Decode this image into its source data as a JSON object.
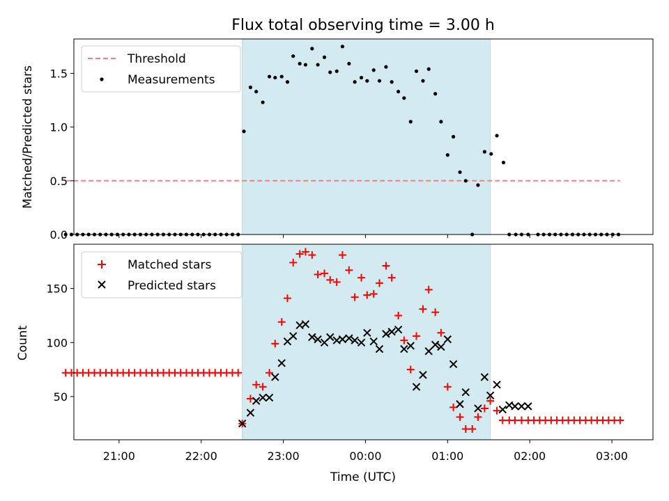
{
  "chart_data": [
    {
      "type": "scatter",
      "title": "Flux total observing time = 3.00 h",
      "xlabel": "",
      "ylabel": "Matched/Predicted stars",
      "ylim": [
        0,
        1.82
      ],
      "yticks": [
        "0.0",
        "0.5",
        "1.0",
        "1.5"
      ],
      "xlim": [
        20.45,
        27.5
      ],
      "shaded_interval": [
        22.5,
        25.52
      ],
      "shade_color": "#d3eaf0",
      "legend_position": "top-left",
      "series": [
        {
          "name": "Threshold",
          "style": "dashed-line",
          "color": "#f08080",
          "x": [
            20.35,
            27.1
          ],
          "y": [
            0.5,
            0.5
          ]
        },
        {
          "name": "Measurements",
          "style": "dots",
          "color": "#000000",
          "x": [
            20.35,
            20.42,
            20.49,
            20.56,
            20.63,
            20.7,
            20.77,
            20.84,
            20.91,
            20.98,
            21.05,
            21.12,
            21.19,
            21.26,
            21.33,
            21.4,
            21.47,
            21.54,
            21.61,
            21.68,
            21.75,
            21.82,
            21.89,
            21.96,
            22.03,
            22.1,
            22.17,
            22.24,
            22.31,
            22.38,
            22.45,
            22.52,
            22.6,
            22.67,
            22.75,
            22.83,
            22.9,
            22.98,
            23.05,
            23.12,
            23.2,
            23.27,
            23.35,
            23.42,
            23.5,
            23.57,
            23.65,
            23.72,
            23.8,
            23.87,
            23.95,
            24.02,
            24.1,
            24.17,
            24.25,
            24.32,
            24.4,
            24.47,
            24.55,
            24.62,
            24.7,
            24.77,
            24.85,
            24.92,
            25.0,
            25.07,
            25.15,
            25.22,
            25.3,
            25.37,
            25.45,
            25.53,
            25.6,
            25.68,
            25.75,
            25.83,
            25.9,
            25.98,
            26.1,
            26.17,
            26.24,
            26.31,
            26.38,
            26.45,
            26.52,
            26.59,
            26.66,
            26.73,
            26.8,
            26.87,
            26.94,
            27.01,
            27.08
          ],
          "y": [
            0,
            0,
            0,
            0,
            0,
            0,
            0,
            0,
            0,
            0,
            0,
            0,
            0,
            0,
            0,
            0,
            0,
            0,
            0,
            0,
            0,
            0,
            0,
            0,
            0,
            0,
            0,
            0,
            0,
            0,
            0,
            0.96,
            1.37,
            1.33,
            1.23,
            1.47,
            1.46,
            1.47,
            1.42,
            1.66,
            1.59,
            1.58,
            1.73,
            1.58,
            1.65,
            1.51,
            1.52,
            1.75,
            1.59,
            1.42,
            1.46,
            1.43,
            1.53,
            1.43,
            1.56,
            1.42,
            1.33,
            1.27,
            1.05,
            1.52,
            1.43,
            1.54,
            1.31,
            1.05,
            0.74,
            0.91,
            0.58,
            0.5,
            0,
            0.46,
            0.77,
            0.75,
            0.92,
            0.67,
            0,
            0,
            0,
            0,
            0,
            0,
            0,
            0,
            0,
            0,
            0,
            0,
            0,
            0,
            0,
            0,
            0,
            0,
            0
          ]
        }
      ]
    },
    {
      "type": "scatter",
      "title": "",
      "xlabel": "Time (UTC)",
      "ylabel": "Count",
      "ylim": [
        10,
        191
      ],
      "yticks": [
        "50",
        "100",
        "150"
      ],
      "xlim": [
        20.45,
        27.5
      ],
      "xticks": [
        "21:00",
        "22:00",
        "23:00",
        "00:00",
        "01:00",
        "02:00",
        "03:00"
      ],
      "shaded_interval": [
        22.5,
        25.52
      ],
      "shade_color": "#d3eaf0",
      "legend_position": "top-left",
      "series": [
        {
          "name": "Matched stars",
          "marker": "plus",
          "color": "#ff0000",
          "x": [
            20.35,
            20.42,
            20.49,
            20.56,
            20.63,
            20.7,
            20.77,
            20.84,
            20.91,
            20.98,
            21.05,
            21.12,
            21.19,
            21.26,
            21.33,
            21.4,
            21.47,
            21.54,
            21.61,
            21.68,
            21.75,
            21.82,
            21.89,
            21.96,
            22.03,
            22.1,
            22.17,
            22.24,
            22.31,
            22.38,
            22.45,
            22.5,
            22.6,
            22.67,
            22.75,
            22.83,
            22.9,
            22.98,
            23.05,
            23.12,
            23.2,
            23.27,
            23.35,
            23.42,
            23.5,
            23.57,
            23.65,
            23.72,
            23.8,
            23.87,
            23.95,
            24.02,
            24.1,
            24.17,
            24.25,
            24.32,
            24.4,
            24.47,
            24.55,
            24.62,
            24.7,
            24.77,
            24.85,
            24.92,
            25.0,
            25.07,
            25.15,
            25.22,
            25.3,
            25.37,
            25.45,
            25.52,
            25.6,
            25.67,
            25.75,
            25.82,
            25.9,
            25.98,
            26.05,
            26.12,
            26.19,
            26.26,
            26.33,
            26.4,
            26.47,
            26.54,
            26.61,
            26.68,
            26.75,
            26.82,
            26.89,
            26.96,
            27.03,
            27.1
          ],
          "y": [
            72,
            72,
            72,
            72,
            72,
            72,
            72,
            72,
            72,
            72,
            72,
            72,
            72,
            72,
            72,
            72,
            72,
            72,
            72,
            72,
            72,
            72,
            72,
            72,
            72,
            72,
            72,
            72,
            72,
            72,
            72,
            25,
            48,
            61,
            59,
            72,
            99,
            119,
            141,
            174,
            182,
            184,
            181,
            163,
            164,
            158,
            156,
            181,
            167,
            142,
            160,
            144,
            145,
            155,
            171,
            160,
            125,
            102,
            75,
            106,
            131,
            149,
            128,
            109,
            59,
            40,
            31,
            20,
            20,
            31,
            39,
            46,
            37,
            28,
            28,
            28,
            28,
            28,
            28,
            28,
            28,
            28,
            28,
            28,
            28,
            28,
            28,
            28,
            28,
            28,
            28,
            28,
            28,
            28
          ]
        },
        {
          "name": "Predicted stars",
          "marker": "x",
          "color": "#000000",
          "x": [
            22.5,
            22.6,
            22.67,
            22.75,
            22.83,
            22.9,
            22.98,
            23.05,
            23.12,
            23.2,
            23.27,
            23.35,
            23.42,
            23.5,
            23.57,
            23.65,
            23.72,
            23.8,
            23.87,
            23.95,
            24.02,
            24.1,
            24.17,
            24.25,
            24.32,
            24.4,
            24.47,
            24.55,
            24.62,
            24.7,
            24.77,
            24.85,
            24.92,
            25.0,
            25.07,
            25.15,
            25.22,
            25.37,
            25.45,
            25.52,
            25.6,
            25.67,
            25.75,
            25.82,
            25.9,
            25.98
          ],
          "y": [
            25,
            35,
            46,
            49,
            49,
            68,
            81,
            101,
            106,
            116,
            117,
            105,
            103,
            100,
            105,
            102,
            103,
            104,
            102,
            100,
            109,
            101,
            94,
            108,
            110,
            112,
            94,
            97,
            59,
            70,
            92,
            98,
            96,
            103,
            80,
            43,
            54,
            39,
            68,
            51,
            61,
            38,
            42,
            41,
            41,
            41
          ]
        }
      ]
    }
  ]
}
